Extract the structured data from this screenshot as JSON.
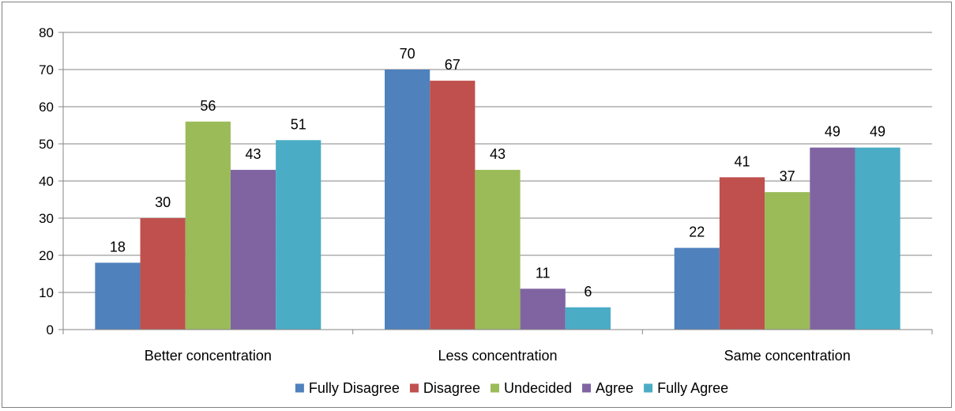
{
  "chart_data": {
    "type": "bar",
    "categories": [
      "Better concentration",
      "Less concentration",
      "Same concentration"
    ],
    "series": [
      {
        "name": "Fully Disagree",
        "color": "#4F81BD",
        "values": [
          18,
          70,
          22
        ]
      },
      {
        "name": "Disagree",
        "color": "#C0504D",
        "values": [
          30,
          67,
          41
        ]
      },
      {
        "name": "Undecided",
        "color": "#9BBB59",
        "values": [
          56,
          43,
          37
        ]
      },
      {
        "name": "Agree",
        "color": "#8064A2",
        "values": [
          43,
          11,
          49
        ]
      },
      {
        "name": "Fully Agree",
        "color": "#4BACC6",
        "values": [
          51,
          6,
          49
        ]
      }
    ],
    "ylim": [
      0,
      80
    ],
    "yticks": [
      0,
      10,
      20,
      30,
      40,
      50,
      60,
      70,
      80
    ],
    "grid": true,
    "legend_position": "bottom",
    "data_labels": true
  }
}
